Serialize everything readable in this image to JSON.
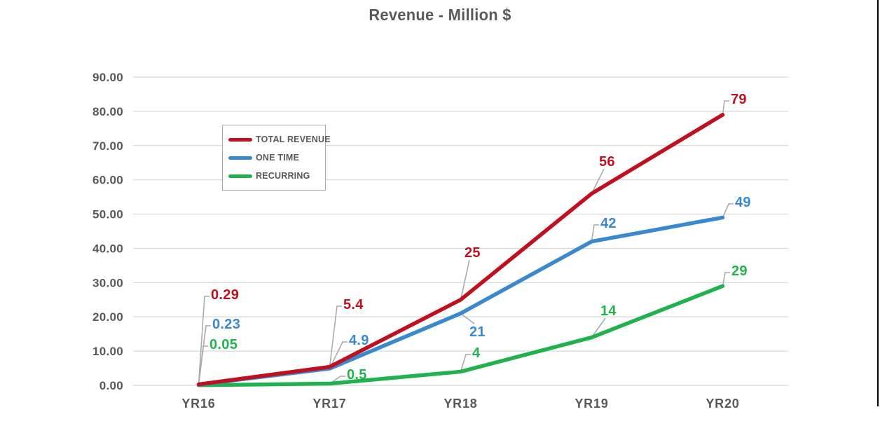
{
  "chart_data": {
    "type": "line",
    "title": "Revenue - Million $",
    "categories": [
      "YR16",
      "YR17",
      "YR18",
      "YR19",
      "YR20"
    ],
    "series": [
      {
        "name": "TOTAL REVENUE",
        "color": "#bf1020",
        "values": [
          0.29,
          5.4,
          25,
          56,
          79
        ],
        "point_labels": [
          "0.29",
          "5.4",
          "25",
          "56",
          "79"
        ]
      },
      {
        "name": "ONE TIME",
        "color": "#3a89ce",
        "values": [
          0.23,
          4.9,
          21,
          42,
          49
        ],
        "point_labels": [
          "0.23",
          "4.9",
          "21",
          "42",
          "49"
        ]
      },
      {
        "name": "RECURRING",
        "color": "#21b24e",
        "values": [
          0.05,
          0.5,
          4,
          14,
          29
        ],
        "point_labels": [
          "0.05",
          "0.5",
          "4",
          "14",
          "29"
        ]
      }
    ],
    "xlabel": "",
    "ylabel": "",
    "ylim": [
      0,
      90
    ],
    "y_tick_step": 10,
    "y_tick_labels": [
      "0.00",
      "10.00",
      "20.00",
      "30.00",
      "40.00",
      "50.00",
      "60.00",
      "70.00",
      "80.00",
      "90.00"
    ],
    "grid": true,
    "legend_position": "inside-upper-left"
  },
  "colors": {
    "axis_text": "#595959",
    "grid": "#d8d8d8",
    "leader": "#ababab",
    "legend_border": "#a9a9a9",
    "frame_line": "#000000",
    "background": "#ffffff"
  }
}
